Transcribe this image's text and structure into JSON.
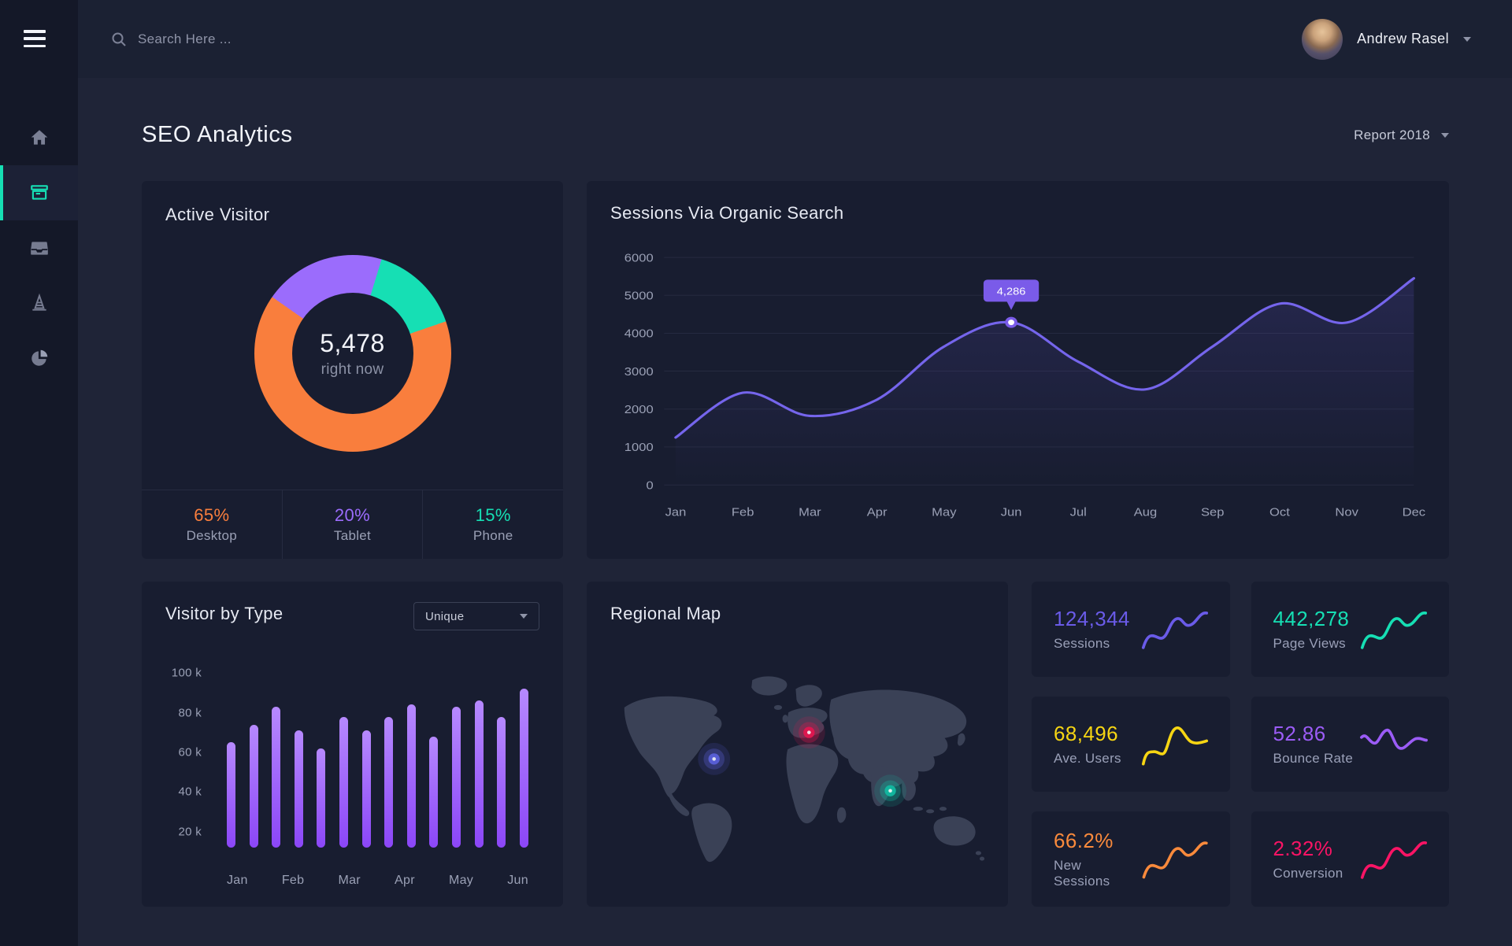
{
  "topbar": {
    "search_placeholder": "Search Here ...",
    "user_name": "Andrew Rasel"
  },
  "sidebar": {
    "items": [
      "home",
      "archive",
      "inbox",
      "cone",
      "pie-chart"
    ],
    "active": "archive",
    "accent_color": "#16dfb4"
  },
  "page": {
    "title": "SEO Analytics",
    "report_label": "Report 2018"
  },
  "cards": {
    "active_visitor": {
      "title": "Active Visitor",
      "center_value": "5,478",
      "center_label": "right now",
      "breakdown": [
        {
          "value": "65%",
          "label": "Desktop",
          "color": "#f97e3d"
        },
        {
          "value": "20%",
          "label": "Tablet",
          "color": "#9b6cfc"
        },
        {
          "value": "15%",
          "label": "Phone",
          "color": "#16dfb4"
        }
      ]
    },
    "sessions": {
      "title": "Sessions Via Organic Search"
    },
    "visitor_by_type": {
      "title": "Visitor by Type",
      "filter_value": "Unique"
    },
    "regional_map": {
      "title": "Regional Map"
    }
  },
  "stats": [
    {
      "value": "124,344",
      "label": "Sessions",
      "color": "#6a5be8",
      "shape": "rise"
    },
    {
      "value": "442,278",
      "label": "Page Views",
      "color": "#16dfb4",
      "shape": "rise"
    },
    {
      "value": "68,496",
      "label": "Ave. Users",
      "color": "#f6d513",
      "shape": "peak"
    },
    {
      "value": "52.86",
      "label": "Bounce Rate",
      "color": "#9b5cf6",
      "shape": "dip"
    },
    {
      "value": "66.2%",
      "label": "New Sessions",
      "color": "#f98a3c",
      "shape": "rise"
    },
    {
      "value": "2.32%",
      "label": "Conversion",
      "color": "#fb1465",
      "shape": "rise"
    }
  ],
  "map": {
    "markers": [
      {
        "name": "north-america",
        "color": "#5a5fd8"
      },
      {
        "name": "europe",
        "color": "#e0164f"
      },
      {
        "name": "asia",
        "color": "#12b8a0"
      }
    ]
  },
  "chart_data": [
    {
      "type": "pie",
      "subtype": "donut",
      "title": "Active Visitor",
      "labels": [
        "Desktop",
        "Tablet",
        "Phone"
      ],
      "values": [
        65,
        20,
        15
      ],
      "unit": "percent",
      "colors": [
        "#f97e3d",
        "#9b6cfc",
        "#16dfb4"
      ],
      "center_value": "5,478",
      "center_label": "right now",
      "legend_position": "bottom"
    },
    {
      "type": "line",
      "title": "Sessions Via Organic Search",
      "x": [
        "Jan",
        "Feb",
        "Mar",
        "Apr",
        "May",
        "Jun",
        "Jul",
        "Aug",
        "Sep",
        "Oct",
        "Nov",
        "Dec"
      ],
      "values": [
        1250,
        2430,
        1820,
        2250,
        3650,
        4286,
        3250,
        2520,
        3650,
        4780,
        4280,
        5450
      ],
      "ylim": [
        0,
        6000
      ],
      "yticks": [
        6000,
        5000,
        4000,
        3000,
        2000,
        1000,
        0
      ],
      "line_color": "#7565ec",
      "annotation": {
        "index": 5,
        "label": "4,286"
      },
      "grid": true,
      "legend": false,
      "area_fill": true
    },
    {
      "type": "bar",
      "title": "Visitor by Type",
      "filter": "Unique",
      "categories": [
        "Jan",
        "Feb",
        "Mar",
        "Apr",
        "May",
        "Jun"
      ],
      "values_k": [
        65,
        74,
        83,
        71,
        62,
        78,
        71,
        78,
        84,
        68,
        83,
        86,
        78,
        92
      ],
      "yticks_k": [
        100,
        80,
        60,
        40,
        20
      ],
      "ytick_suffix": " k",
      "ylim_k": [
        12,
        104
      ],
      "bar_gradient": [
        "#b689fe",
        "#8b46f7"
      ],
      "grid": false,
      "legend": false
    }
  ]
}
